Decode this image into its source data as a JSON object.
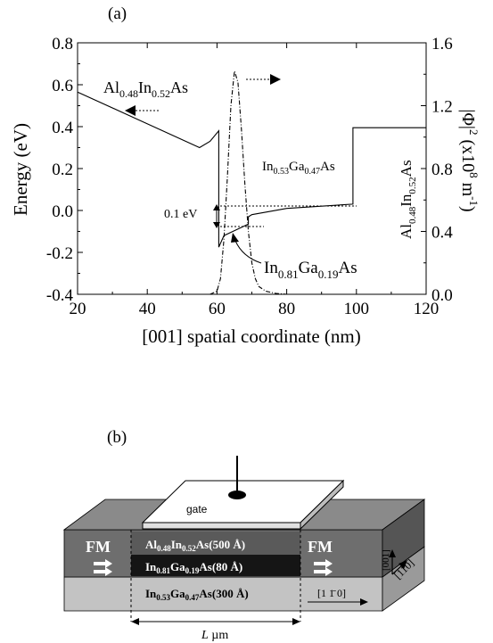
{
  "figure": {
    "panel_a_label": "(a)",
    "panel_b_label": "(b)"
  },
  "chart_data": {
    "type": "line",
    "xlabel": "[001] spatial coordinate (nm)",
    "ylabel_left": "Energy (eV)",
    "ylabel_right": "|Φ|² (x10⁸ m⁻¹)",
    "xlim": [
      20,
      120
    ],
    "ylim_left": [
      -0.4,
      0.8
    ],
    "ylim_right": [
      0.0,
      1.6
    ],
    "x_ticks": [
      "20",
      "40",
      "60",
      "80",
      "100",
      "120"
    ],
    "y_ticks_left": [
      "-0.4",
      "-0.2",
      "0.0",
      "0.2",
      "0.4",
      "0.6",
      "0.8"
    ],
    "y_ticks_right": [
      "0.0",
      "0.4",
      "0.8",
      "1.2",
      "1.6"
    ],
    "series": [
      {
        "style": "solid",
        "axis": "left",
        "x": [
          20,
          55,
          58,
          60.5,
          60.5,
          62,
          69,
          69,
          70,
          80,
          99,
          99,
          120
        ],
        "y": [
          0.565,
          0.3,
          0.33,
          0.38,
          -0.175,
          -0.12,
          -0.065,
          -0.03,
          -0.02,
          0.01,
          0.03,
          0.395,
          0.395
        ]
      },
      {
        "style": "dash-dot",
        "axis": "right",
        "x": [
          58,
          60,
          61,
          62,
          63,
          64,
          65,
          66,
          67,
          68,
          69,
          70,
          71,
          72,
          74,
          77,
          80
        ],
        "y": [
          0.0,
          0.02,
          0.1,
          0.35,
          0.75,
          1.2,
          1.42,
          1.35,
          1.05,
          0.7,
          0.4,
          0.2,
          0.1,
          0.05,
          0.02,
          0.005,
          0.0
        ]
      }
    ],
    "annotations": {
      "left_barrier": {
        "main": "Al",
        "sub1": "0.48",
        "mid": "In",
        "sub2": "0.52",
        "end": "As"
      },
      "right_barrier": {
        "main": "Al",
        "sub1": "0.48",
        "mid": "In",
        "sub2": "0.52",
        "end": "As"
      },
      "ingaas_53": {
        "main": "In",
        "sub1": "0.53",
        "mid": "Ga",
        "sub2": "0.47",
        "end": "As"
      },
      "ingaas_81": {
        "main": "In",
        "sub1": "0.81",
        "mid": "Ga",
        "sub2": "0.19",
        "end": "As"
      },
      "splitting": "0.1 eV",
      "right_axis_parts": {
        "abs_open": "|Φ|",
        "sup2": "2",
        "paren": " (x10",
        "sup8": "8",
        "unit": " m",
        "supm1": "-1",
        "close": ")"
      }
    }
  },
  "device": {
    "gate_label": "gate",
    "fm_left": "FM",
    "fm_right": "FM",
    "layer_top": {
      "main": "Al",
      "sub1": "0.48",
      "mid": "In",
      "sub2": "0.52",
      "end": "As(500 Å)"
    },
    "layer_mid": {
      "main": "In",
      "sub1": "0.81",
      "mid": "Ga",
      "sub2": "0.19",
      "end": "As(80 Å)"
    },
    "layer_bot": {
      "main": "In",
      "sub1": "0.53",
      "mid": "Ga",
      "sub2": "0.47",
      "end": "As(300 Å)"
    },
    "dir_110bar": "[1 1̄ 0]",
    "dir_001": "[001]",
    "dir_110": "[110]",
    "length_label_italic": "L",
    "length_label_unit": " µm",
    "colors": {
      "fm_dark": "#6e6e6e",
      "fm_darker": "#555555",
      "channel_black": "#151515",
      "substrate_light": "#c3c3c3",
      "substrate_side": "#9a9a9a",
      "gate_white": "#ffffff"
    }
  }
}
